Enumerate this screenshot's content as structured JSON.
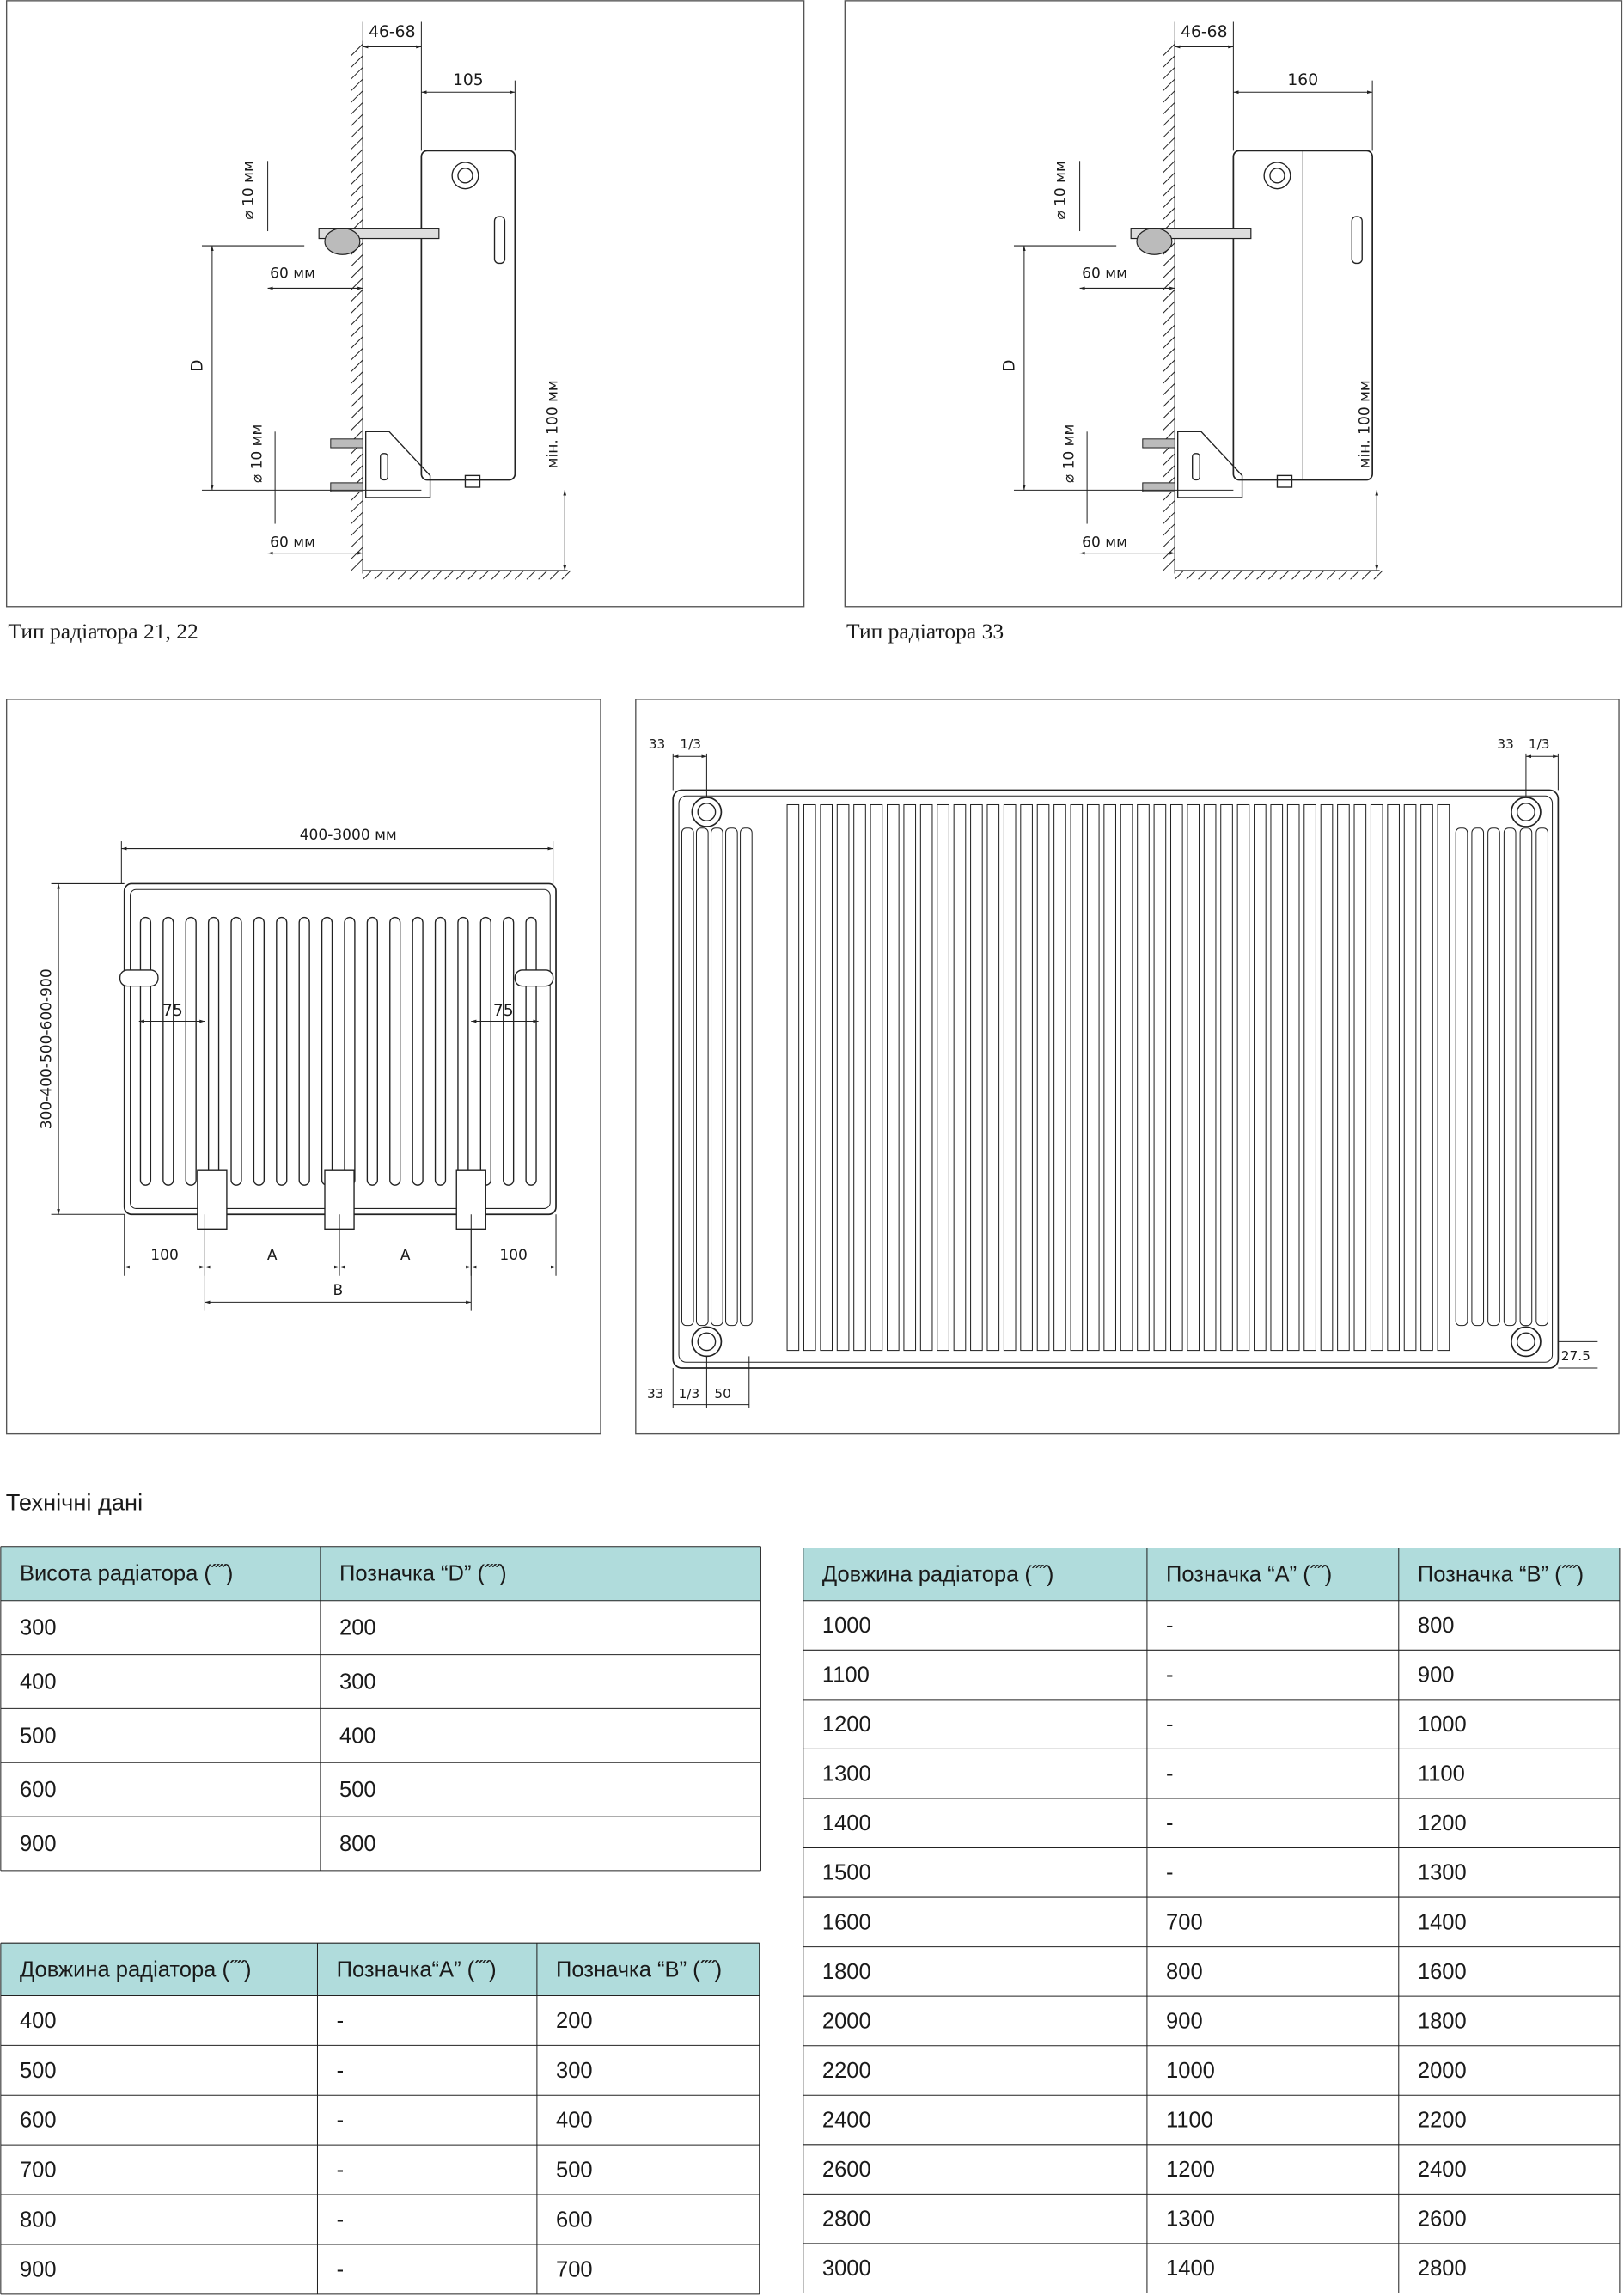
{
  "side_views": [
    {
      "caption": "Тип радіатора 21, 22",
      "wall_gap": "46-68",
      "depth": "105",
      "diameter_top": "⌀ 10 мм",
      "offset_top": "60 мм",
      "height_label": "D",
      "diameter_bottom": "⌀ 10 мм",
      "offset_bottom": "60 мм",
      "floor_gap": "мін. 100 мм"
    },
    {
      "caption": "Тип радіатора 33",
      "wall_gap": "46-68",
      "depth": "160",
      "diameter_top": "⌀ 10 мм",
      "offset_top": "60 мм",
      "height_label": "D",
      "diameter_bottom": "⌀ 10 мм",
      "offset_bottom": "60 мм",
      "floor_gap": "мін. 100 мм"
    }
  ],
  "front_view": {
    "length": "400-3000 мм",
    "height": "300-400-500-600-900",
    "bracket_left": "75",
    "bracket_right": "75",
    "edge_left": "100",
    "a_left": "A",
    "a_right": "A",
    "edge_right": "100",
    "b": "B"
  },
  "connection_view": {
    "top_left_offset": "33",
    "top_left_fraction": "1/3",
    "top_right_offset": "33",
    "top_right_fraction": "1/3",
    "bottom_offset": "33",
    "bottom_fraction": "1/3",
    "bottom_spacing": "50",
    "bottom_height": "27.5"
  },
  "section_title": "Технічні дані",
  "table_height": {
    "headers": [
      "Висота радіатора (˝˝)",
      "Позначка “D” (˝˝)"
    ],
    "rows": [
      [
        "300",
        "200"
      ],
      [
        "400",
        "300"
      ],
      [
        "500",
        "400"
      ],
      [
        "600",
        "500"
      ],
      [
        "900",
        "800"
      ]
    ]
  },
  "table_short": {
    "headers": [
      "Довжина радіатора (˝˝)",
      "Позначка“A” (˝˝)",
      "Позначка “B” (˝˝)"
    ],
    "rows": [
      [
        "400",
        "-",
        "200"
      ],
      [
        "500",
        "-",
        "300"
      ],
      [
        "600",
        "-",
        "400"
      ],
      [
        "700",
        "-",
        "500"
      ],
      [
        "800",
        "-",
        "600"
      ],
      [
        "900",
        "-",
        "700"
      ]
    ]
  },
  "table_long": {
    "headers": [
      "Довжина радіатора (˝˝)",
      "Позначка “A” (˝˝)",
      "Позначка “B” (˝˝)"
    ],
    "rows": [
      [
        "1000",
        "-",
        "800"
      ],
      [
        "1100",
        "-",
        "900"
      ],
      [
        "1200",
        "-",
        "1000"
      ],
      [
        "1300",
        "-",
        "1100"
      ],
      [
        "1400",
        "-",
        "1200"
      ],
      [
        "1500",
        "-",
        "1300"
      ],
      [
        "1600",
        "700",
        "1400"
      ],
      [
        "1800",
        "800",
        "1600"
      ],
      [
        "2000",
        "900",
        "1800"
      ],
      [
        "2200",
        "1000",
        "2000"
      ],
      [
        "2400",
        "1100",
        "2200"
      ],
      [
        "2600",
        "1200",
        "2400"
      ],
      [
        "2800",
        "1300",
        "2600"
      ],
      [
        "3000",
        "1400",
        "2800"
      ]
    ]
  }
}
